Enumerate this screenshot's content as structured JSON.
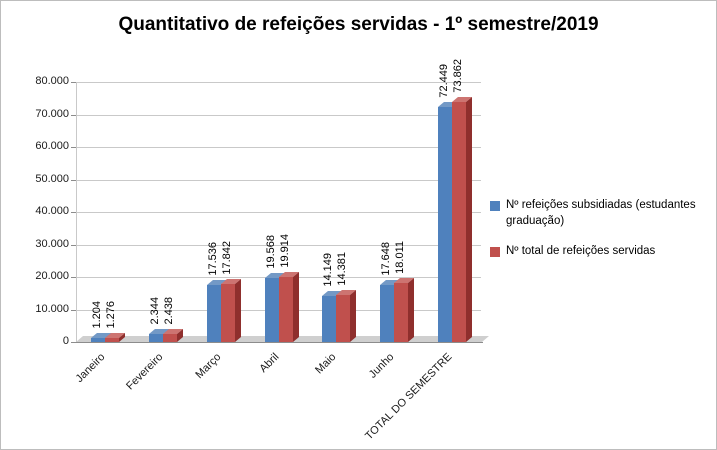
{
  "chart_data": {
    "type": "bar",
    "title": "Quantitativo de refeições servidas - 1º semestre/2019",
    "categories": [
      "Janeiro",
      "Fevereiro",
      "Março",
      "Abril",
      "Maio",
      "Junho",
      "TOTAL DO SEMESTRE"
    ],
    "series": [
      {
        "name": "Nº refeições subsidiadas (estudantes graduação)",
        "color": "#4f81bd",
        "values": [
          1204,
          2344,
          17536,
          19568,
          14149,
          17648,
          72449
        ],
        "labels": [
          "1.204",
          "2.344",
          "17.536",
          "19.568",
          "14.149",
          "17.648",
          "72.449"
        ]
      },
      {
        "name": "Nº total  de refeições servidas",
        "color": "#c0504d",
        "values": [
          1276,
          2438,
          17842,
          19914,
          14381,
          18011,
          73862
        ],
        "labels": [
          "1.276",
          "2.438",
          "17.842",
          "19.914",
          "14.381",
          "18.011",
          "73.862"
        ]
      }
    ],
    "y_ticks": [
      "80.000",
      "70.000",
      "60.000",
      "50.000",
      "40.000",
      "30.000",
      "20.000",
      "10.000",
      "0"
    ],
    "ylim": [
      0,
      80000
    ],
    "xlabel": "",
    "ylabel": "",
    "grid": true,
    "legend_position": "right",
    "style_3d": true
  }
}
